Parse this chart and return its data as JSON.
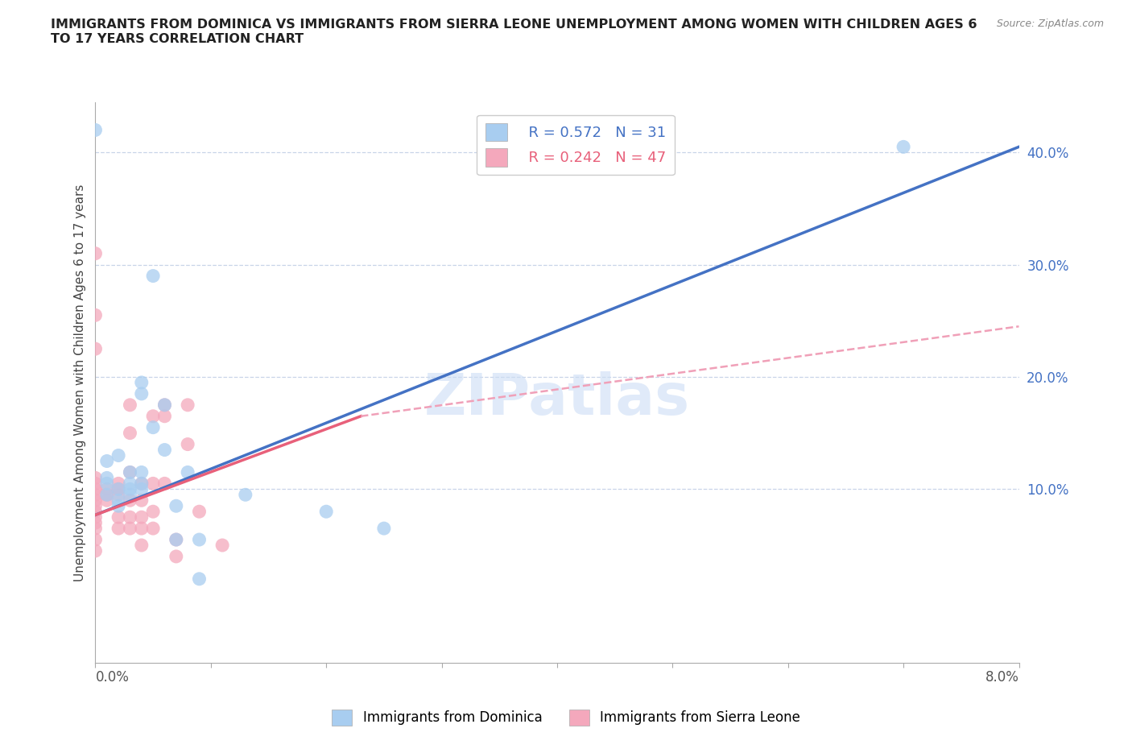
{
  "title": "IMMIGRANTS FROM DOMINICA VS IMMIGRANTS FROM SIERRA LEONE UNEMPLOYMENT AMONG WOMEN WITH CHILDREN AGES 6\nTO 17 YEARS CORRELATION CHART",
  "source": "Source: ZipAtlas.com",
  "ylabel": "Unemployment Among Women with Children Ages 6 to 17 years",
  "xlim": [
    0.0,
    0.08
  ],
  "ylim": [
    -0.055,
    0.445
  ],
  "yticks": [
    0.1,
    0.2,
    0.3,
    0.4
  ],
  "ytick_labels": [
    "10.0%",
    "20.0%",
    "30.0%",
    "40.0%"
  ],
  "dominica_color": "#a8cdf0",
  "sierra_leone_color": "#f4a8bc",
  "dominica_line_color": "#4472c4",
  "sierra_leone_line_color": "#e8607a",
  "sierra_leone_dashed_color": "#f0a0b8",
  "legend_R_dominica": "R = 0.572",
  "legend_N_dominica": "N = 31",
  "legend_R_sierra": "R = 0.242",
  "legend_N_sierra": "N = 47",
  "watermark": "ZIPatlas",
  "blue_line": [
    [
      0.0,
      0.077
    ],
    [
      0.08,
      0.405
    ]
  ],
  "pink_line_solid": [
    [
      0.0,
      0.077
    ],
    [
      0.023,
      0.165
    ]
  ],
  "pink_line_dashed": [
    [
      0.023,
      0.165
    ],
    [
      0.08,
      0.245
    ]
  ],
  "dominica_scatter": [
    [
      0.0,
      0.42
    ],
    [
      0.001,
      0.105
    ],
    [
      0.001,
      0.125
    ],
    [
      0.001,
      0.11
    ],
    [
      0.001,
      0.095
    ],
    [
      0.002,
      0.1
    ],
    [
      0.002,
      0.13
    ],
    [
      0.002,
      0.09
    ],
    [
      0.002,
      0.085
    ],
    [
      0.003,
      0.1
    ],
    [
      0.003,
      0.105
    ],
    [
      0.003,
      0.115
    ],
    [
      0.003,
      0.095
    ],
    [
      0.004,
      0.1
    ],
    [
      0.004,
      0.105
    ],
    [
      0.004,
      0.115
    ],
    [
      0.004,
      0.185
    ],
    [
      0.004,
      0.195
    ],
    [
      0.005,
      0.155
    ],
    [
      0.005,
      0.29
    ],
    [
      0.006,
      0.175
    ],
    [
      0.006,
      0.135
    ],
    [
      0.007,
      0.085
    ],
    [
      0.007,
      0.055
    ],
    [
      0.008,
      0.115
    ],
    [
      0.009,
      0.055
    ],
    [
      0.009,
      0.02
    ],
    [
      0.013,
      0.095
    ],
    [
      0.02,
      0.08
    ],
    [
      0.025,
      0.065
    ],
    [
      0.07,
      0.405
    ]
  ],
  "sierra_leone_scatter": [
    [
      0.0,
      0.31
    ],
    [
      0.0,
      0.255
    ],
    [
      0.0,
      0.225
    ],
    [
      0.0,
      0.11
    ],
    [
      0.0,
      0.105
    ],
    [
      0.0,
      0.1
    ],
    [
      0.0,
      0.095
    ],
    [
      0.0,
      0.09
    ],
    [
      0.0,
      0.085
    ],
    [
      0.0,
      0.08
    ],
    [
      0.0,
      0.075
    ],
    [
      0.0,
      0.07
    ],
    [
      0.0,
      0.065
    ],
    [
      0.0,
      0.055
    ],
    [
      0.0,
      0.045
    ],
    [
      0.001,
      0.1
    ],
    [
      0.001,
      0.095
    ],
    [
      0.001,
      0.09
    ],
    [
      0.002,
      0.105
    ],
    [
      0.002,
      0.1
    ],
    [
      0.002,
      0.095
    ],
    [
      0.002,
      0.075
    ],
    [
      0.002,
      0.065
    ],
    [
      0.003,
      0.175
    ],
    [
      0.003,
      0.15
    ],
    [
      0.003,
      0.115
    ],
    [
      0.003,
      0.09
    ],
    [
      0.003,
      0.075
    ],
    [
      0.003,
      0.065
    ],
    [
      0.004,
      0.105
    ],
    [
      0.004,
      0.09
    ],
    [
      0.004,
      0.075
    ],
    [
      0.004,
      0.065
    ],
    [
      0.004,
      0.05
    ],
    [
      0.005,
      0.165
    ],
    [
      0.005,
      0.105
    ],
    [
      0.005,
      0.08
    ],
    [
      0.005,
      0.065
    ],
    [
      0.006,
      0.175
    ],
    [
      0.006,
      0.165
    ],
    [
      0.006,
      0.105
    ],
    [
      0.007,
      0.055
    ],
    [
      0.007,
      0.04
    ],
    [
      0.008,
      0.175
    ],
    [
      0.008,
      0.14
    ],
    [
      0.009,
      0.08
    ],
    [
      0.011,
      0.05
    ]
  ]
}
